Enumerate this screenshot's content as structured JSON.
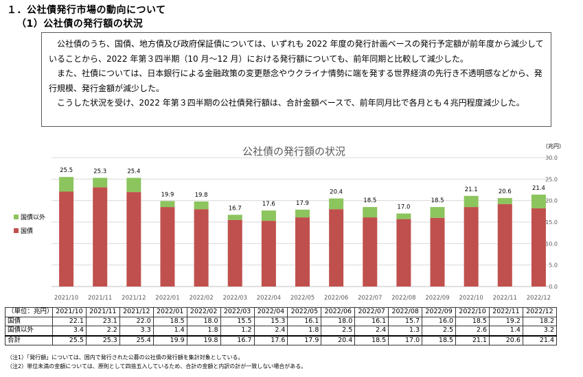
{
  "heading1": "１．公社債発行市場の動向について",
  "heading2": "（1）公社債の発行額の状況",
  "summary": [
    "公社債のうち、国債、地方債及び政府保証債については、いずれも 2022 年度の発行計画ベースの発行予定額が前年度から減少していることから、2022 年第３四半期（10 月～12 月）における発行額についても、前年同期と比較して減少した。",
    "また、社債については、日本銀行による金融政策の変更懸念やウクライナ情勢に端を発する世界経済の先行き不透明感などから、発行規模、発行金額が減少した。",
    "こうした状況を受け、2022 年第３四半期の公社債発行額は、合計金額ベースで、前年同月比で各月とも４兆円程度減少した。"
  ],
  "colors": {
    "jgb": "#c0504d",
    "other": "#8cc45e",
    "grid": "#d9d9d9",
    "text": "#595959"
  },
  "chart_data": {
    "type": "bar",
    "stacked": true,
    "title": "公社債の発行額の状況",
    "unit": "（兆円）",
    "ylim": [
      0,
      30
    ],
    "yticks": [
      "0.0",
      "5.0",
      "10.0",
      "15.0",
      "20.0",
      "25.0",
      "30.0"
    ],
    "categories": [
      "2021/10",
      "2021/11",
      "2021/12",
      "2022/01",
      "2022/02",
      "2022/03",
      "2022/04",
      "2022/05",
      "2022/06",
      "2022/07",
      "2022/08",
      "2022/09",
      "2022/10",
      "2022/11",
      "2022/12"
    ],
    "series": [
      {
        "name": "国債",
        "values": [
          22.1,
          23.1,
          22.0,
          18.5,
          18.0,
          15.5,
          15.3,
          16.1,
          18.0,
          16.1,
          15.7,
          16.0,
          18.5,
          19.2,
          18.2
        ]
      },
      {
        "name": "国債以外",
        "values": [
          3.4,
          2.2,
          3.3,
          1.4,
          1.8,
          1.2,
          2.4,
          1.8,
          2.5,
          2.4,
          1.3,
          2.5,
          2.6,
          1.4,
          3.2
        ]
      }
    ],
    "totals": [
      "25.5",
      "25.3",
      "25.4",
      "19.9",
      "19.8",
      "16.7",
      "17.6",
      "17.9",
      "20.4",
      "18.5",
      "17.0",
      "18.5",
      "21.1",
      "20.6",
      "21.4"
    ],
    "legend": [
      "国債以外",
      "国債"
    ]
  },
  "table": {
    "unit_label": "（単位：兆円）",
    "rows": [
      {
        "label": "国債",
        "values": [
          "22.1",
          "23.1",
          "22.0",
          "18.5",
          "18.0",
          "15.5",
          "15.3",
          "16.1",
          "18.0",
          "16.1",
          "15.7",
          "16.0",
          "18.5",
          "19.2",
          "18.2"
        ]
      },
      {
        "label": "国債以外",
        "values": [
          "3.4",
          "2.2",
          "3.3",
          "1.4",
          "1.8",
          "1.2",
          "2.4",
          "1.8",
          "2.5",
          "2.4",
          "1.3",
          "2.5",
          "2.6",
          "1.4",
          "3.2"
        ]
      },
      {
        "label": "合計",
        "values": [
          "25.5",
          "25.3",
          "25.4",
          "19.9",
          "19.8",
          "16.7",
          "17.6",
          "17.9",
          "20.4",
          "18.5",
          "17.0",
          "18.5",
          "21.1",
          "20.6",
          "21.4"
        ]
      }
    ]
  },
  "notes": [
    "（注1）「発行額」については、国内で発行された公募の公社債の発行額を集計対象としている。",
    "（注2）単位未満の金額については、原則として四捨五入しているため、合計の金額と内訳の計が一致しない場合がある。"
  ]
}
